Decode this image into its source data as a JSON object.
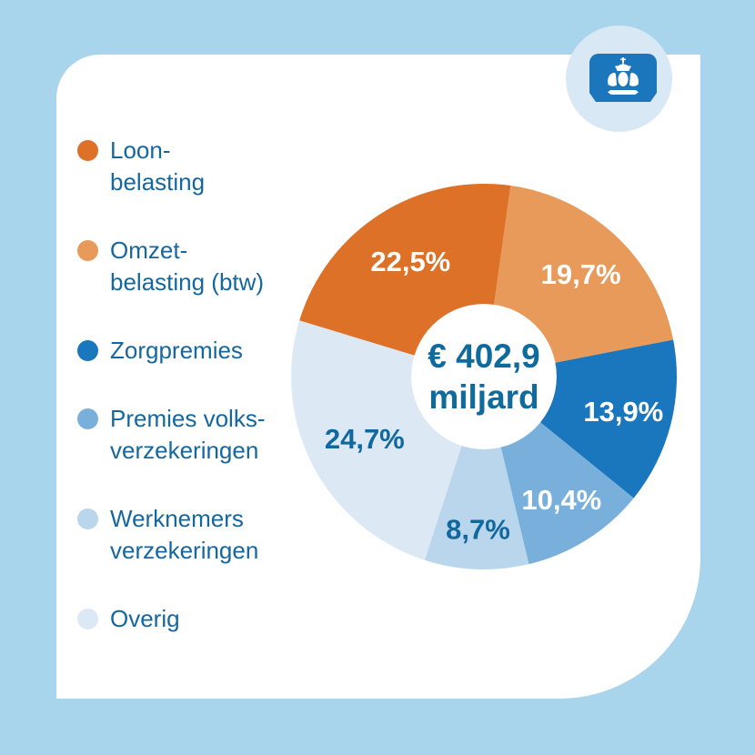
{
  "page": {
    "background_color": "#a8d4ec",
    "card_color": "#ffffff"
  },
  "logo": {
    "badge_color": "#d8e8f5",
    "emblem_color": "#1c76bc"
  },
  "chart_data": {
    "type": "pie",
    "variant": "donut",
    "center_label": "€ 402,9\nmiljard",
    "center_label_color": "#0f6a9e",
    "legend_text_color": "#14679f",
    "slices": [
      {
        "id": "loonbelasting",
        "legend_label": "Loon-\nbelasting",
        "value": 22.5,
        "pct_label": "22,5%",
        "color": "#dd7128",
        "pct_label_color": "#ffffff"
      },
      {
        "id": "omzetbelasting-btw",
        "legend_label": "Omzet-\nbelasting (btw)",
        "value": 19.7,
        "pct_label": "19,7%",
        "color": "#e89a5b",
        "pct_label_color": "#ffffff"
      },
      {
        "id": "zorgpremies",
        "legend_label": "Zorgpremies",
        "value": 13.9,
        "pct_label": "13,9%",
        "color": "#1b77bd",
        "pct_label_color": "#ffffff"
      },
      {
        "id": "premies-volksverzekeringen",
        "legend_label": "Premies volks-\nverzekeringen",
        "value": 10.4,
        "pct_label": "10,4%",
        "color": "#79b0db",
        "pct_label_color": "#ffffff"
      },
      {
        "id": "werknemersverzekeringen",
        "legend_label": "Werknemers\nverzekeringen",
        "value": 8.7,
        "pct_label": "8,7%",
        "color": "#b9d6ec",
        "pct_label_color": "#11689e"
      },
      {
        "id": "overig",
        "legend_label": "Overig",
        "value": 24.7,
        "pct_label": "24,7%",
        "color": "#dce9f5",
        "pct_label_color": "#11689e"
      }
    ],
    "layout": {
      "start_angle_deg": -73.1,
      "outer_radius_px": 212,
      "inner_radius_ratio": 0.377,
      "label_radius_px": [
        150,
        155,
        158,
        160,
        168,
        148
      ],
      "legend_position": "left",
      "grid": false
    }
  }
}
